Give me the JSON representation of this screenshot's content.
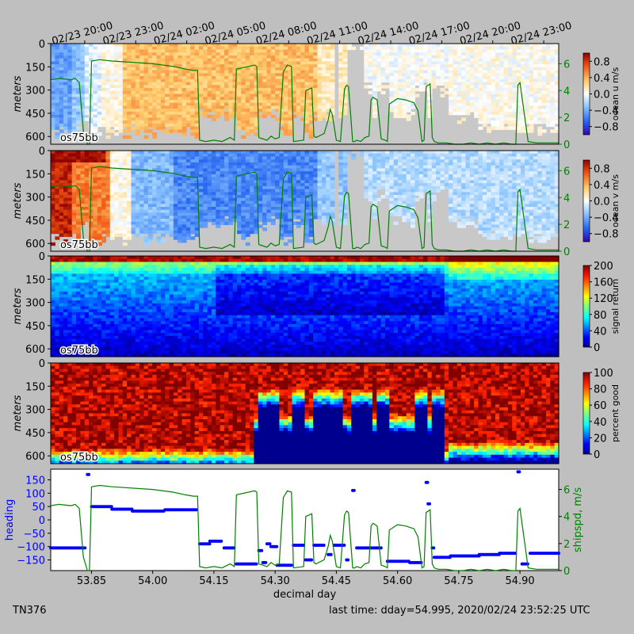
{
  "footer": {
    "cruise": "TN376",
    "last_time": "last time: dday=54.995,  2020/02/24 23:52:25 UTC"
  },
  "chart_data": {
    "type": "heatmap",
    "x_range": [
      53.75,
      54.995
    ],
    "xlabel": "decimal day",
    "x_ticks": [
      53.85,
      54.0,
      54.15,
      54.3,
      54.45,
      54.6,
      54.75,
      54.9
    ],
    "x_tick_labels": [
      "53.85",
      "54.00",
      "54.15",
      "54.30",
      "54.45",
      "54.60",
      "54.75",
      "54.90"
    ],
    "date_ticks": [
      {
        "dday": 53.8333,
        "label": "02/23 20:00"
      },
      {
        "dday": 53.9583,
        "label": "02/23 23:00"
      },
      {
        "dday": 54.0833,
        "label": "02/24 02:00"
      },
      {
        "dday": 54.2083,
        "label": "02/24 05:00"
      },
      {
        "dday": 54.3333,
        "label": "02/24 08:00"
      },
      {
        "dday": 54.4583,
        "label": "02/24 11:00"
      },
      {
        "dday": 54.5833,
        "label": "02/24 14:00"
      },
      {
        "dday": 54.7083,
        "label": "02/24 17:00"
      },
      {
        "dday": 54.8333,
        "label": "02/24 20:00"
      },
      {
        "dday": 54.9583,
        "label": "02/24 23:00"
      }
    ],
    "panels": [
      {
        "ylabel": "meters",
        "yticks": [
          0,
          150,
          300,
          450,
          600
        ],
        "ylim": [
          650,
          0
        ],
        "instrument": "os75bb",
        "colorbar": {
          "label": "ocean u m/s",
          "ticks": [
            "0.8",
            "0.4",
            "0.0",
            "−0.4",
            "−0.8"
          ],
          "range": [
            -1,
            1
          ],
          "colormap": "rdylbu"
        },
        "right_axis": {
          "ticks": [
            "0",
            "2",
            "4",
            "6"
          ],
          "ylim": [
            0,
            7.5
          ]
        }
      },
      {
        "ylabel": "meters",
        "yticks": [
          0,
          150,
          300,
          450,
          600
        ],
        "ylim": [
          650,
          0
        ],
        "instrument": "os75bb",
        "colorbar": {
          "label": "ocean v m/s",
          "ticks": [
            "0.8",
            "0.4",
            "0.0",
            "−0.4",
            "−0.8"
          ],
          "range": [
            -1,
            1
          ],
          "colormap": "rdylbu"
        },
        "right_axis": {
          "ticks": [
            "0",
            "2",
            "4",
            "6"
          ],
          "ylim": [
            0,
            7.5
          ]
        }
      },
      {
        "ylabel": "meters",
        "yticks": [
          0,
          150,
          300,
          450,
          600
        ],
        "ylim": [
          650,
          0
        ],
        "instrument": "os75bb",
        "colorbar": {
          "label": "signal return",
          "ticks": [
            "200",
            "160",
            "120",
            "80",
            "40",
            "0"
          ],
          "range": [
            0,
            200
          ],
          "colormap": "jet"
        }
      },
      {
        "ylabel": "meters",
        "yticks": [
          0,
          150,
          300,
          450,
          600
        ],
        "ylim": [
          650,
          0
        ],
        "instrument": "os75bb",
        "colorbar": {
          "label": "percent good",
          "ticks": [
            "100",
            "80",
            "60",
            "40",
            "20",
            "0"
          ],
          "range": [
            0,
            100
          ],
          "colormap": "jet"
        }
      }
    ],
    "heading_panel": {
      "ylabel": "heading",
      "yticks": [
        "150",
        "100",
        "50",
        "0",
        "−50",
        "−100",
        "−150"
      ],
      "ylim": [
        -190,
        190
      ],
      "right_label": "shipspd, m/s",
      "right_ticks": [
        "0",
        "2",
        "4",
        "6"
      ],
      "right_ylim": [
        0,
        7.5
      ],
      "heading_color": "#0000ff",
      "speed_color": "#008000"
    },
    "shipspd": {
      "x": [
        53.75,
        53.77,
        53.8,
        53.81,
        53.82,
        53.83,
        53.84,
        53.845,
        53.85,
        53.87,
        53.9,
        54.0,
        54.05,
        54.08,
        54.1,
        54.11,
        54.115,
        54.13,
        54.15,
        54.17,
        54.19,
        54.2,
        54.205,
        54.25,
        54.255,
        54.26,
        54.28,
        54.29,
        54.3,
        54.31,
        54.32,
        54.33,
        54.34,
        54.345,
        54.37,
        54.375,
        54.39,
        54.395,
        54.4,
        54.42,
        54.43,
        54.435,
        54.44,
        54.45,
        54.46,
        54.47,
        54.475,
        54.48,
        54.49,
        54.495,
        54.5,
        54.51,
        54.52,
        54.53,
        54.535,
        54.54,
        54.55,
        54.56,
        54.57,
        54.575,
        54.58,
        54.6,
        54.62,
        54.63,
        54.64,
        54.65,
        54.66,
        54.665,
        54.67,
        54.68,
        54.685,
        54.69,
        54.7,
        54.72,
        54.74,
        54.76,
        54.78,
        54.8,
        54.82,
        54.84,
        54.86,
        54.88,
        54.89,
        54.895,
        54.9,
        54.92,
        54.94,
        54.96,
        54.98,
        54.995
      ],
      "y": [
        4.8,
        4.9,
        4.8,
        4.9,
        4.6,
        1.0,
        0.0,
        0.0,
        6.2,
        6.3,
        6.2,
        6.0,
        5.8,
        5.6,
        5.5,
        5.5,
        0.3,
        0.2,
        0.3,
        0.2,
        0.5,
        0.3,
        5.6,
        5.9,
        5.8,
        0.5,
        0.3,
        0.6,
        0.4,
        0.5,
        5.4,
        5.9,
        5.8,
        0.2,
        0.3,
        4.0,
        4.2,
        0.6,
        0.5,
        0.8,
        1.8,
        2.6,
        2.2,
        0.3,
        0.2,
        4.1,
        4.4,
        4.3,
        0.2,
        0.2,
        0.3,
        0.2,
        0.5,
        0.6,
        3.3,
        3.5,
        3.3,
        0.4,
        0.3,
        0.2,
        3.0,
        3.4,
        3.3,
        3.2,
        3.1,
        2.5,
        0.2,
        0.3,
        4.3,
        4.5,
        0.5,
        0.2,
        0.1,
        0.1,
        0.0,
        0.0,
        0.1,
        0.0,
        0.1,
        0.0,
        0.1,
        0.0,
        0.0,
        4.4,
        4.6,
        0.2,
        0.1,
        0.1,
        0.1,
        0.1
      ]
    },
    "heading": {
      "segments": [
        {
          "x0": 53.75,
          "x1": 53.835,
          "y": -105
        },
        {
          "x0": 53.84,
          "x1": 53.845,
          "y": 170
        },
        {
          "x0": 53.85,
          "x1": 53.9,
          "y": 50
        },
        {
          "x0": 53.9,
          "x1": 53.95,
          "y": 40
        },
        {
          "x0": 53.95,
          "x1": 54.03,
          "y": 33
        },
        {
          "x0": 54.03,
          "x1": 54.11,
          "y": 38
        },
        {
          "x0": 54.115,
          "x1": 54.14,
          "y": -90
        },
        {
          "x0": 54.14,
          "x1": 54.17,
          "y": -80
        },
        {
          "x0": 54.175,
          "x1": 54.2,
          "y": -105
        },
        {
          "x0": 54.205,
          "x1": 54.255,
          "y": -165
        },
        {
          "x0": 54.26,
          "x1": 54.27,
          "y": -115
        },
        {
          "x0": 54.27,
          "x1": 54.28,
          "y": -160
        },
        {
          "x0": 54.28,
          "x1": 54.29,
          "y": -90
        },
        {
          "x0": 54.29,
          "x1": 54.305,
          "y": -100
        },
        {
          "x0": 54.305,
          "x1": 54.34,
          "y": -170
        },
        {
          "x0": 54.345,
          "x1": 54.37,
          "y": -95
        },
        {
          "x0": 54.375,
          "x1": 54.39,
          "y": -150
        },
        {
          "x0": 54.395,
          "x1": 54.42,
          "y": -95
        },
        {
          "x0": 54.43,
          "x1": 54.44,
          "y": -130
        },
        {
          "x0": 54.445,
          "x1": 54.47,
          "y": -95
        },
        {
          "x0": 54.475,
          "x1": 54.48,
          "y": -150
        },
        {
          "x0": 54.49,
          "x1": 54.495,
          "y": 110
        },
        {
          "x0": 54.5,
          "x1": 54.56,
          "y": -105
        },
        {
          "x0": 54.575,
          "x1": 54.63,
          "y": -155
        },
        {
          "x0": 54.63,
          "x1": 54.66,
          "y": -160
        },
        {
          "x0": 54.67,
          "x1": 54.675,
          "y": 140
        },
        {
          "x0": 54.675,
          "x1": 54.68,
          "y": 60
        },
        {
          "x0": 54.685,
          "x1": 54.69,
          "y": -105
        },
        {
          "x0": 54.69,
          "x1": 54.73,
          "y": -140
        },
        {
          "x0": 54.73,
          "x1": 54.8,
          "y": -135
        },
        {
          "x0": 54.8,
          "x1": 54.85,
          "y": -130
        },
        {
          "x0": 54.85,
          "x1": 54.89,
          "y": -125
        },
        {
          "x0": 54.895,
          "x1": 54.9,
          "y": 180
        },
        {
          "x0": 54.905,
          "x1": 54.92,
          "y": -165
        },
        {
          "x0": 54.925,
          "x1": 54.995,
          "y": -125
        }
      ]
    }
  }
}
